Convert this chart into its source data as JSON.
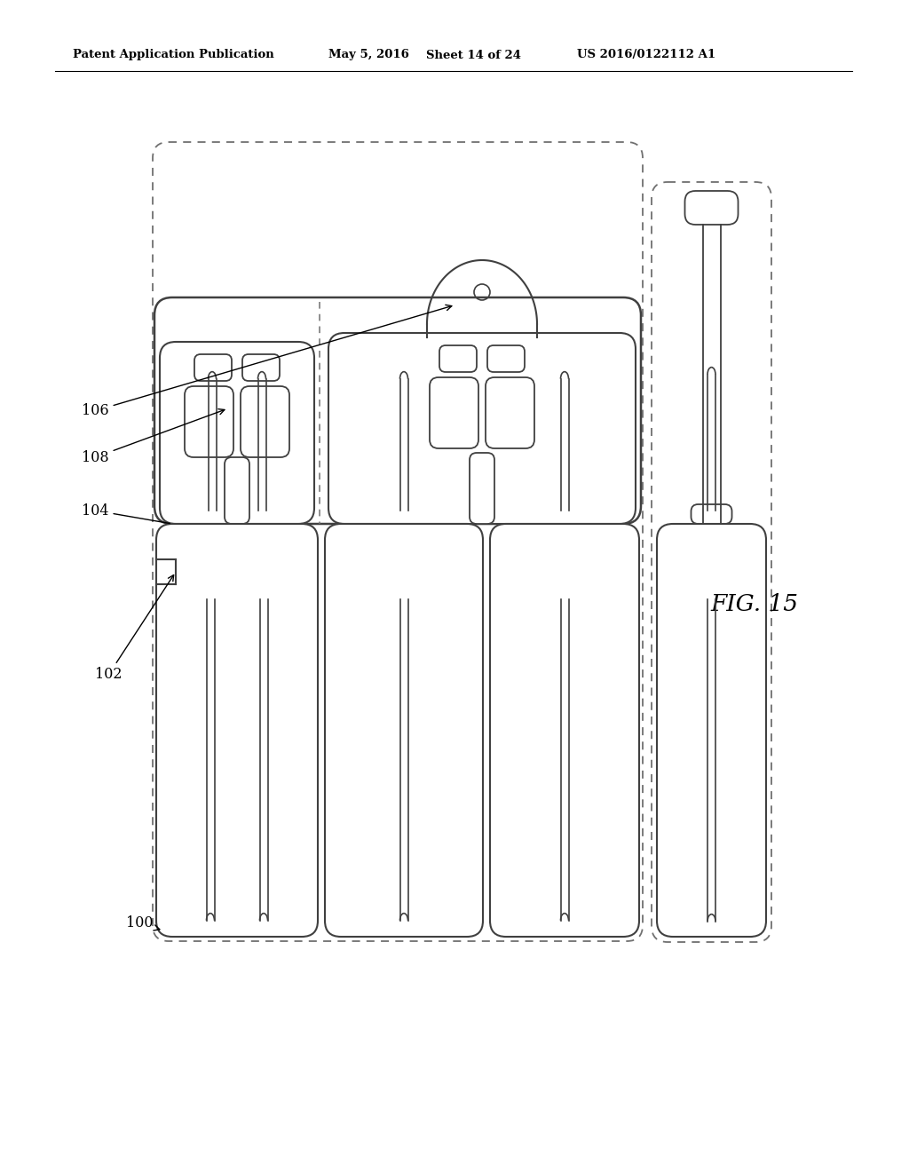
{
  "bg_color": "#ffffff",
  "header_text": "Patent Application Publication",
  "header_date": "May 5, 2016",
  "header_sheet": "Sheet 14 of 24",
  "header_patent": "US 2016/0122112 A1",
  "fig_label": "FIG. 15",
  "label_100": "100",
  "label_102": "102",
  "label_104": "104",
  "label_106": "106",
  "label_108": "108",
  "line_color": "#404040",
  "dashed_color": "#707070"
}
